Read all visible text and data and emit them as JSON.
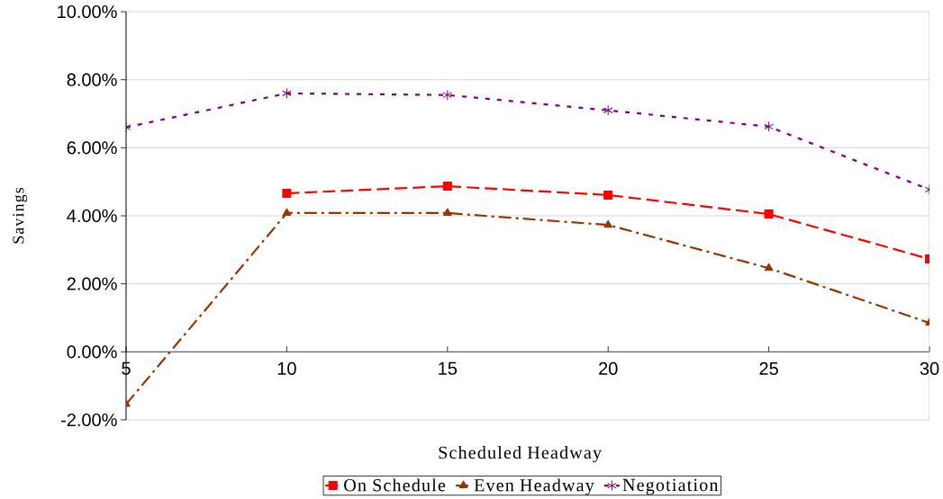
{
  "chart_data": {
    "type": "line",
    "xlabel": "Scheduled Headway",
    "ylabel": "Savings",
    "x": [
      5,
      10,
      15,
      20,
      25,
      30
    ],
    "series": [
      {
        "name": "On Schedule",
        "color": "#ff0000",
        "marker": "square",
        "line_style": "dashed",
        "values": [
          null,
          4.66,
          4.87,
          4.61,
          4.05,
          2.73
        ]
      },
      {
        "name": "Even Headway",
        "color": "#993300",
        "marker": "triangle",
        "line_style": "dashdot",
        "values": [
          -1.54,
          4.08,
          4.08,
          3.73,
          2.46,
          0.85
        ]
      },
      {
        "name": "Negotiation",
        "color": "#800080",
        "marker": "cross",
        "line_style": "dotted",
        "values": [
          6.6,
          7.6,
          7.55,
          7.1,
          6.62,
          4.77
        ]
      }
    ],
    "xlim": [
      5,
      30
    ],
    "xticks": [
      5,
      10,
      15,
      20,
      25,
      30
    ],
    "ylim": [
      -2,
      10
    ],
    "yticks": [
      {
        "value": -2,
        "label": "-2.00%"
      },
      {
        "value": 0,
        "label": "0.00%"
      },
      {
        "value": 2,
        "label": "2.00%"
      },
      {
        "value": 4,
        "label": "4.00%"
      },
      {
        "value": 6,
        "label": "6.00%"
      },
      {
        "value": 8,
        "label": "8.00%"
      },
      {
        "value": 10,
        "label": "10.00%"
      }
    ],
    "grid": "y",
    "legend": "bottom"
  }
}
